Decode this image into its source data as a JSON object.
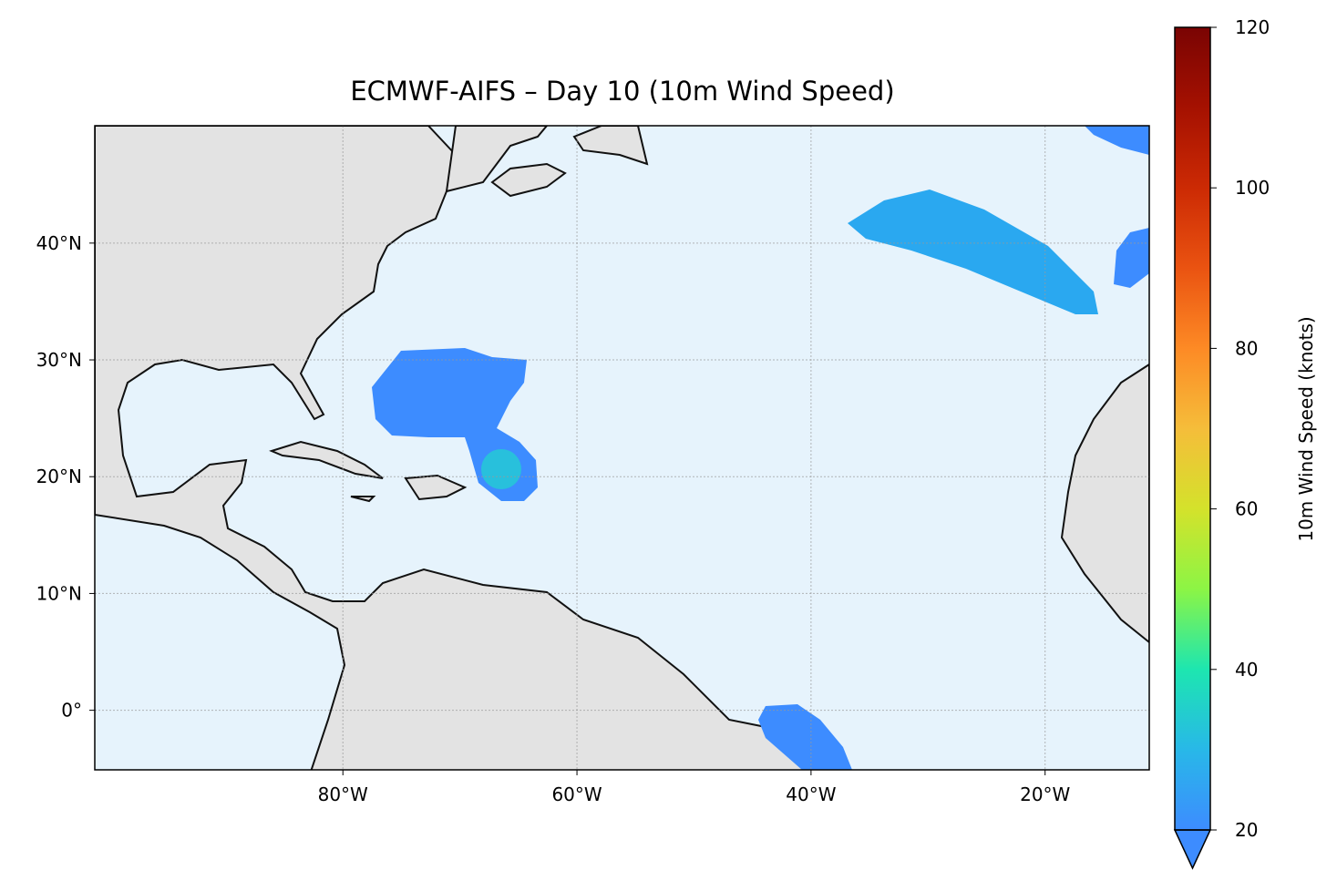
{
  "map": {
    "title": "ECMWF-AIFS – Day 10 (10m Wind Speed)",
    "lonlim": [
      -101.2,
      -11.1
    ],
    "latlim": [
      -5.1,
      50.05
    ],
    "lon_ticks": [
      {
        "value": -80,
        "label": "80°W"
      },
      {
        "value": -60,
        "label": "60°W"
      },
      {
        "value": -40,
        "label": "40°W"
      },
      {
        "value": -20,
        "label": "20°W"
      }
    ],
    "lat_ticks": [
      {
        "value": 40,
        "label": "40°N"
      },
      {
        "value": 30,
        "label": "30°N"
      },
      {
        "value": 20,
        "label": "20°N"
      },
      {
        "value": 10,
        "label": "10°N"
      },
      {
        "value": 0,
        "label": "0°"
      }
    ],
    "colorbar": {
      "label": "10m Wind Speed (knots)",
      "lim": [
        20,
        120
      ],
      "ticks": [
        20,
        40,
        60,
        80,
        100,
        120
      ]
    }
  }
}
